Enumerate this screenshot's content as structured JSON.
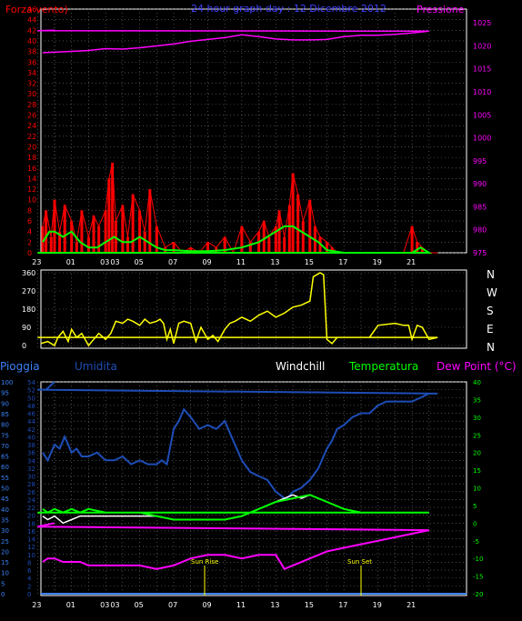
{
  "top": {
    "title_left": "Forza vento)",
    "title_center": "24 hour graph day : 12 Dicembre 2012",
    "title_right": "Pressione",
    "colors": {
      "wind": "#ff0000",
      "gust": "#ff2020",
      "avg": "#00ff00",
      "pressure": "#ff00ff",
      "title_center": "#4040ff"
    }
  },
  "dir": {
    "labels_right": [
      "N",
      "W",
      "S",
      "E",
      "N"
    ]
  },
  "bottom": {
    "legend": {
      "pioggia": "Pioggia",
      "umidita": "Umidita",
      "windchill": "Windchill",
      "temperatura": "Temperatura",
      "dewpoint": "Dew Point (°C)"
    },
    "sunrise": "Sun Rise",
    "sunset": "Sun Set",
    "colors": {
      "pioggia": "#3b82f6",
      "umidita": "#1e4db7",
      "windchill": "#ffffff",
      "temperatura": "#00ff00",
      "dewpoint": "#ff00ff"
    }
  },
  "hour_ticks": [
    "01",
    "03",
    "03",
    "05",
    "07",
    "09",
    "11",
    "13",
    "15",
    "17",
    "19",
    "21",
    "23"
  ],
  "chart_data": [
    {
      "type": "line",
      "title": "24 hour graph day : 12 Dicembre 2012",
      "x_unit": "hour",
      "xlim": [
        23.2,
        24.2
      ],
      "y_left_label": "Forza vento)",
      "y_left_ticks": [
        0,
        2,
        4,
        6,
        8,
        10,
        12,
        14,
        16,
        18,
        20,
        22,
        24,
        26,
        28,
        30,
        32,
        34,
        36,
        38,
        40,
        42,
        44,
        46
      ],
      "ylim_left": [
        0,
        46
      ],
      "y_right_label": "Pressione",
      "y_right_ticks": [
        975,
        980,
        985,
        990,
        995,
        1000,
        1005,
        1010,
        1015,
        1020,
        1025
      ],
      "ylim_right": [
        975,
        1028
      ],
      "series": [
        {
          "name": "Pressione",
          "axis": "right",
          "x": [
            23.3,
            1,
            2,
            3,
            4,
            5,
            6,
            7,
            8,
            9,
            10,
            11,
            12,
            13,
            14,
            15,
            16,
            17,
            18,
            19,
            20,
            21,
            22,
            23,
            24
          ],
          "values": [
            1018.5,
            1018.8,
            1019,
            1019.4,
            1019.3,
            1019.6,
            1020,
            1020.4,
            1021,
            1021.4,
            1021.8,
            1022.4,
            1022,
            1021.5,
            1021.3,
            1021.3,
            1021.4,
            1022,
            1022.3,
            1022.3,
            1022.5,
            1022.8,
            1023.2,
            1023.3,
            1023.4
          ]
        },
        {
          "name": "Forza vento",
          "axis": "left",
          "x": [
            23.3,
            23.5,
            23.8,
            0,
            0.3,
            0.6,
            1,
            1.3,
            1.6,
            2,
            2.3,
            2.6,
            3,
            3.2,
            3.4,
            3.6,
            4,
            4.3,
            4.6,
            5,
            5.3,
            5.6,
            6,
            6.5,
            7,
            7.5,
            8,
            8.5,
            9,
            9.5,
            10,
            10.5,
            11,
            11.5,
            12,
            12.3,
            12.6,
            13,
            13.2,
            13.5,
            13.8,
            14,
            14.3,
            14.6,
            15,
            15.3,
            15.6,
            16,
            16.3,
            16.6,
            17,
            17.5,
            18,
            18.5,
            19,
            19.5,
            20,
            20.5,
            21,
            21.3,
            21.6,
            22,
            22.5,
            23,
            23.5,
            24
          ],
          "values": [
            5,
            8,
            3,
            10,
            4,
            9,
            6,
            2,
            8,
            3,
            7,
            5,
            8,
            14,
            17,
            6,
            9,
            3,
            11,
            8,
            4,
            12,
            5,
            1,
            2,
            0,
            1,
            0,
            2,
            1,
            3,
            0,
            5,
            2,
            4,
            6,
            3,
            5,
            8,
            3,
            9,
            15,
            11,
            6,
            10,
            5,
            3,
            2,
            1,
            0,
            0,
            0,
            0,
            0,
            0,
            0,
            0,
            0,
            5,
            2,
            1,
            0,
            0,
            0,
            0,
            0
          ]
        },
        {
          "name": "Media",
          "axis": "left",
          "x": [
            23.3,
            23.7,
            0,
            0.5,
            1,
            1.5,
            2,
            2.5,
            3,
            3.5,
            4,
            4.5,
            5,
            5.5,
            6,
            6.5,
            7,
            8,
            9,
            10,
            11,
            12,
            12.5,
            13,
            13.5,
            14,
            14.5,
            15,
            15.5,
            16,
            17,
            18,
            19,
            20,
            21,
            21.5,
            22,
            23,
            24
          ],
          "values": [
            2,
            4,
            4,
            3,
            4,
            2,
            1,
            1,
            2,
            3,
            2,
            2,
            3,
            2,
            1,
            0.5,
            0.5,
            0.3,
            0.3,
            0.5,
            1,
            2,
            3,
            4,
            5,
            5,
            4,
            3,
            2,
            0.5,
            0,
            0,
            0,
            0,
            0,
            1,
            0,
            0,
            0
          ]
        }
      ]
    },
    {
      "type": "line",
      "title": "",
      "ylabel": "Direzione",
      "y_ticks": [
        0,
        90,
        180,
        270,
        360
      ],
      "ylim": [
        0,
        360
      ],
      "series": [
        {
          "name": "Direzione",
          "x": [
            23.2,
            23.6,
            24,
            0.2,
            0.5,
            0.8,
            1,
            1.3,
            1.6,
            2,
            2.3,
            2.6,
            3,
            3.3,
            3.6,
            4,
            4.3,
            4.6,
            5,
            5.3,
            5.6,
            6,
            6.2,
            6.4,
            6.6,
            6.8,
            7,
            7.3,
            7.6,
            8,
            8.3,
            8.6,
            9,
            9.3,
            9.6,
            10,
            10.3,
            10.6,
            11,
            11.5,
            12,
            12.5,
            13,
            13.5,
            14,
            14.5,
            15,
            15.2,
            15.4,
            15.6,
            15.8,
            16,
            16.3,
            16.6,
            17,
            17.5,
            18,
            18.5,
            19,
            20,
            20.5,
            20.8,
            21,
            21.3,
            21.6,
            22,
            22.5,
            23,
            24
          ],
          "values": [
            10,
            20,
            0,
            40,
            70,
            20,
            80,
            40,
            60,
            0,
            30,
            60,
            30,
            60,
            120,
            110,
            130,
            120,
            100,
            130,
            110,
            120,
            130,
            110,
            30,
            80,
            10,
            110,
            120,
            110,
            20,
            90,
            30,
            50,
            20,
            80,
            110,
            120,
            140,
            120,
            150,
            170,
            140,
            160,
            190,
            200,
            220,
            340,
            350,
            360,
            350,
            30,
            10,
            40,
            40,
            40,
            40,
            40,
            100,
            110,
            100,
            100,
            30,
            100,
            90,
            30,
            40,
            40,
            40
          ]
        }
      ]
    },
    {
      "type": "line",
      "title": "",
      "y_left_ticks_rain": [
        0,
        5,
        10,
        15,
        20,
        25,
        30,
        35,
        40,
        45,
        50,
        55,
        60,
        65,
        70,
        75,
        80,
        85,
        90,
        95,
        100
      ],
      "y_left_ticks_hum": [
        0,
        2,
        4,
        6,
        8,
        10,
        12,
        14,
        16,
        18,
        20,
        22,
        24,
        26,
        28,
        30,
        32,
        34,
        36,
        38,
        40,
        42,
        44,
        46,
        48,
        50,
        52,
        54
      ],
      "y_right_ticks": [
        -20,
        -15,
        -10,
        -5,
        0,
        5,
        10,
        15,
        20,
        25,
        30,
        35,
        40
      ],
      "ylim_right": [
        -20,
        40
      ],
      "series": [
        {
          "name": "Pioggia",
          "values": [
            0,
            0,
            0,
            0,
            0,
            0,
            0,
            0,
            0,
            0,
            0,
            0,
            0,
            0,
            0,
            0,
            0,
            0,
            0,
            0,
            0,
            0,
            0,
            0,
            0
          ]
        },
        {
          "name": "Umidita",
          "axis": "left",
          "x": [
            23.3,
            23.6,
            24,
            0.3,
            0.6,
            1,
            1.3,
            1.6,
            2,
            2.5,
            3,
            3.5,
            4,
            4.5,
            5,
            5.5,
            6,
            6.3,
            6.6,
            7,
            7.3,
            7.6,
            8,
            8.5,
            9,
            9.5,
            10,
            10.5,
            11,
            11.5,
            12,
            12.5,
            13,
            13.3,
            13.6,
            14,
            14.5,
            15,
            15.5,
            16,
            16.3,
            16.6,
            17,
            17.5,
            18,
            18.5,
            19,
            19.5,
            20,
            20.5,
            21,
            21.5,
            22,
            22.5,
            23,
            23.5,
            24
          ],
          "values": [
            36,
            34,
            38,
            37,
            40,
            36,
            37,
            35,
            35,
            36,
            34,
            34,
            35,
            33,
            34,
            33,
            33,
            34,
            33,
            42,
            44,
            47,
            45,
            42,
            43,
            42,
            44,
            39,
            34,
            31,
            30,
            29,
            26,
            25,
            24,
            26,
            27,
            29,
            32,
            37,
            39,
            42,
            43,
            45,
            46,
            46,
            48,
            49,
            49,
            49,
            49,
            50,
            51,
            51,
            52,
            52,
            54
          ]
        },
        {
          "name": "Windchill",
          "axis": "right",
          "x": [
            23.3,
            23.6,
            24,
            0.5,
            1,
            1.5,
            2,
            3,
            4,
            5,
            6,
            7,
            8,
            9,
            10,
            11,
            12,
            13,
            13.5,
            14,
            14.5,
            15,
            15.5
          ],
          "values": [
            2,
            1,
            2,
            0,
            1,
            2,
            2,
            2,
            2,
            2,
            2,
            1,
            1,
            1,
            1,
            2,
            4,
            6,
            7,
            8,
            7,
            8,
            7
          ]
        },
        {
          "name": "Temperatura",
          "axis": "right",
          "x": [
            23.3,
            23.6,
            24,
            0.5,
            1,
            1.5,
            2,
            3,
            4,
            5,
            6,
            7,
            8,
            9,
            10,
            11,
            12,
            13,
            14,
            15,
            16,
            17,
            18,
            19,
            20,
            21,
            22,
            23,
            24
          ],
          "values": [
            4,
            3,
            4,
            3,
            4,
            3,
            4,
            3,
            3,
            3,
            2,
            1,
            1,
            1,
            1,
            2,
            4,
            6,
            7,
            8,
            6,
            4,
            3,
            3,
            3,
            3,
            3,
            3,
            3
          ]
        },
        {
          "name": "Dew Point (°C)",
          "axis": "right",
          "x": [
            23.3,
            23.6,
            24,
            0.5,
            1,
            1.5,
            2,
            3,
            4,
            5,
            6,
            7,
            8,
            9,
            10,
            11,
            12,
            13,
            13.5,
            14,
            15,
            16,
            17,
            18,
            19,
            20,
            21,
            22,
            23,
            24
          ],
          "values": [
            -11,
            -10,
            -10,
            -11,
            -11,
            -11,
            -12,
            -12,
            -12,
            -12,
            -13,
            -12,
            -10,
            -9,
            -9,
            -10,
            -9,
            -9,
            -13,
            -12,
            -10,
            -8,
            -7,
            -6,
            -5,
            -4,
            -3,
            -2,
            -1,
            0
          ]
        }
      ],
      "annotations": [
        "Sun Rise",
        "Sun Set"
      ]
    }
  ]
}
